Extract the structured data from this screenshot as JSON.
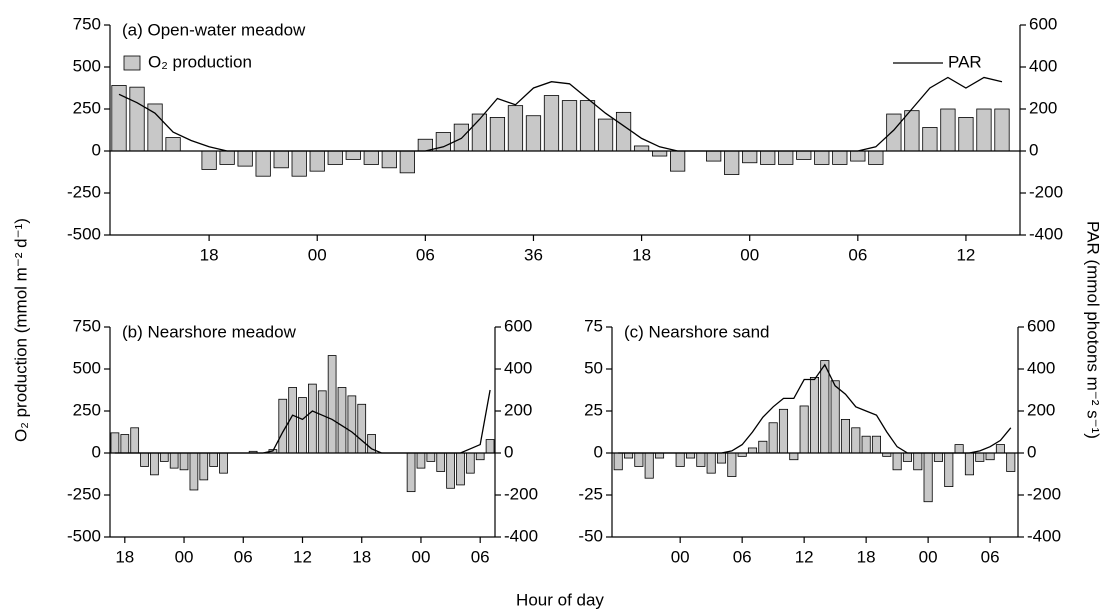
{
  "chart_data": [
    {
      "type": "bar",
      "title": "(a) Open-water meadow",
      "x": [
        13,
        14,
        15,
        16,
        17,
        18,
        19,
        20,
        21,
        22,
        23,
        24,
        25,
        26,
        27,
        28,
        29,
        30,
        31,
        32,
        33,
        34,
        35,
        36,
        37,
        38,
        39,
        40,
        41,
        42,
        43,
        44,
        45,
        46,
        47,
        48,
        49,
        50,
        51,
        52,
        53,
        54,
        55,
        56,
        57,
        58,
        59,
        60,
        61,
        62
      ],
      "series": [
        {
          "name": "O₂ production",
          "type": "bar",
          "color": "#c8c8c8",
          "values": [
            390,
            380,
            280,
            80,
            0,
            -110,
            -80,
            -90,
            -150,
            -100,
            -150,
            -120,
            -80,
            -50,
            -80,
            -100,
            -130,
            70,
            110,
            160,
            220,
            200,
            270,
            210,
            330,
            300,
            300,
            190,
            230,
            30,
            -30,
            -120,
            0,
            -60,
            -140,
            -70,
            -80,
            -80,
            -50,
            -80,
            -80,
            -60,
            -80,
            220,
            240,
            140,
            250,
            200,
            250,
            250
          ]
        },
        {
          "name": "PAR",
          "type": "line",
          "axis": "y2",
          "color": "#000000",
          "values": [
            270,
            230,
            180,
            90,
            50,
            20,
            0,
            0,
            0,
            0,
            0,
            0,
            0,
            0,
            0,
            0,
            0,
            0,
            20,
            60,
            150,
            250,
            220,
            300,
            330,
            320,
            250,
            180,
            120,
            60,
            20,
            0,
            0,
            0,
            0,
            0,
            0,
            0,
            0,
            0,
            0,
            0,
            20,
            100,
            200,
            300,
            350,
            300,
            350,
            330
          ]
        }
      ],
      "xlim": [
        12.5,
        63
      ],
      "xticks": [
        18,
        {
          "value": 24,
          "label": "00"
        },
        {
          "value": 30,
          "label": "06"
        },
        36,
        {
          "value": 42,
          "label": "18"
        },
        {
          "value": 48,
          "label": "00"
        },
        {
          "value": 54,
          "label": "06"
        },
        {
          "value": 60,
          "label": "12"
        }
      ],
      "ylim": [
        -500,
        750
      ],
      "yticks": [
        -500,
        -250,
        0,
        250,
        500,
        750
      ],
      "y2lim": [
        -400,
        600
      ],
      "y2ticks": [
        -400,
        -200,
        0,
        200,
        400,
        600
      ]
    },
    {
      "type": "bar",
      "title": "(b) Nearshore meadow",
      "x": [
        17,
        18,
        19,
        20,
        21,
        22,
        23,
        24,
        25,
        26,
        27,
        28,
        29,
        30,
        31,
        32,
        33,
        34,
        35,
        36,
        37,
        38,
        39,
        40,
        41,
        42,
        43,
        44,
        45,
        46,
        47,
        48,
        49,
        50,
        51,
        52,
        53,
        54,
        55
      ],
      "series": [
        {
          "type": "bar",
          "color": "#c8c8c8",
          "values": [
            120,
            110,
            150,
            -80,
            -130,
            -50,
            -90,
            -100,
            -220,
            -160,
            -80,
            -120,
            0,
            0,
            10,
            0,
            20,
            320,
            390,
            330,
            410,
            370,
            580,
            390,
            340,
            290,
            110,
            0,
            0,
            0,
            -230,
            -90,
            -50,
            -110,
            -210,
            -190,
            -120,
            -40,
            80
          ]
        },
        {
          "type": "line",
          "axis": "y2",
          "color": "#000000",
          "values": [
            0,
            0,
            0,
            0,
            0,
            0,
            0,
            0,
            0,
            0,
            0,
            0,
            0,
            0,
            0,
            0,
            10,
            100,
            180,
            160,
            200,
            180,
            160,
            130,
            100,
            60,
            20,
            0,
            0,
            0,
            0,
            0,
            0,
            0,
            0,
            0,
            20,
            40,
            300
          ]
        }
      ],
      "xlim": [
        16.5,
        55.5
      ],
      "xticks": [
        18,
        {
          "value": 24,
          "label": "00"
        },
        {
          "value": 30,
          "label": "06"
        },
        {
          "value": 36,
          "label": "12"
        },
        {
          "value": 42,
          "label": "18"
        },
        {
          "value": 48,
          "label": "00"
        },
        {
          "value": 54,
          "label": "06"
        }
      ],
      "ylim": [
        -500,
        750
      ],
      "yticks": [
        -500,
        -250,
        0,
        250,
        500,
        750
      ],
      "y2lim": [
        -400,
        600
      ],
      "y2ticks": [
        -400,
        -200,
        0,
        200,
        400,
        600
      ]
    },
    {
      "type": "bar",
      "title": "(c) Nearshore sand",
      "x": [
        18,
        19,
        20,
        21,
        22,
        23,
        24,
        25,
        26,
        27,
        28,
        29,
        30,
        31,
        32,
        33,
        34,
        35,
        36,
        37,
        38,
        39,
        40,
        41,
        42,
        43,
        44,
        45,
        46,
        47,
        48,
        49,
        50,
        51,
        52,
        53,
        54,
        55,
        56
      ],
      "series": [
        {
          "type": "bar",
          "color": "#c8c8c8",
          "values": [
            -10,
            -3,
            -8,
            -15,
            -3,
            0,
            -8,
            -3,
            -8,
            -12,
            -6,
            -14,
            -2,
            3,
            7,
            18,
            26,
            -4,
            28,
            45,
            55,
            43,
            20,
            15,
            10,
            10,
            -2,
            -10,
            -5,
            -10,
            -29,
            -5,
            -20,
            5,
            -13,
            -5,
            -4,
            5,
            -11
          ]
        },
        {
          "type": "line",
          "axis": "y2",
          "color": "#000000",
          "values": [
            0,
            0,
            0,
            0,
            0,
            0,
            0,
            0,
            0,
            0,
            0,
            10,
            40,
            100,
            170,
            220,
            260,
            260,
            350,
            350,
            420,
            320,
            280,
            220,
            200,
            180,
            100,
            30,
            0,
            0,
            0,
            0,
            0,
            0,
            0,
            10,
            30,
            60,
            120
          ]
        }
      ],
      "xlim": [
        17.4,
        56.7
      ],
      "xticks": [
        {
          "value": 24,
          "label": "00"
        },
        {
          "value": 30,
          "label": "06"
        },
        {
          "value": 36,
          "label": "12"
        },
        {
          "value": 42,
          "label": "18"
        },
        {
          "value": 48,
          "label": "00"
        },
        {
          "value": 54,
          "label": "06"
        }
      ],
      "ylim": [
        -50,
        75
      ],
      "yticks": [
        -50,
        -25,
        0,
        25,
        50,
        75
      ],
      "y2lim": [
        -400,
        600
      ],
      "y2ticks": [
        -400,
        -200,
        0,
        200,
        400,
        600
      ]
    }
  ],
  "axis_labels": {
    "y": "O₂ production (mmol m⁻² d⁻¹)",
    "y2": "PAR (mmol photons m⁻² s⁻¹)",
    "x": "Hour of day"
  }
}
